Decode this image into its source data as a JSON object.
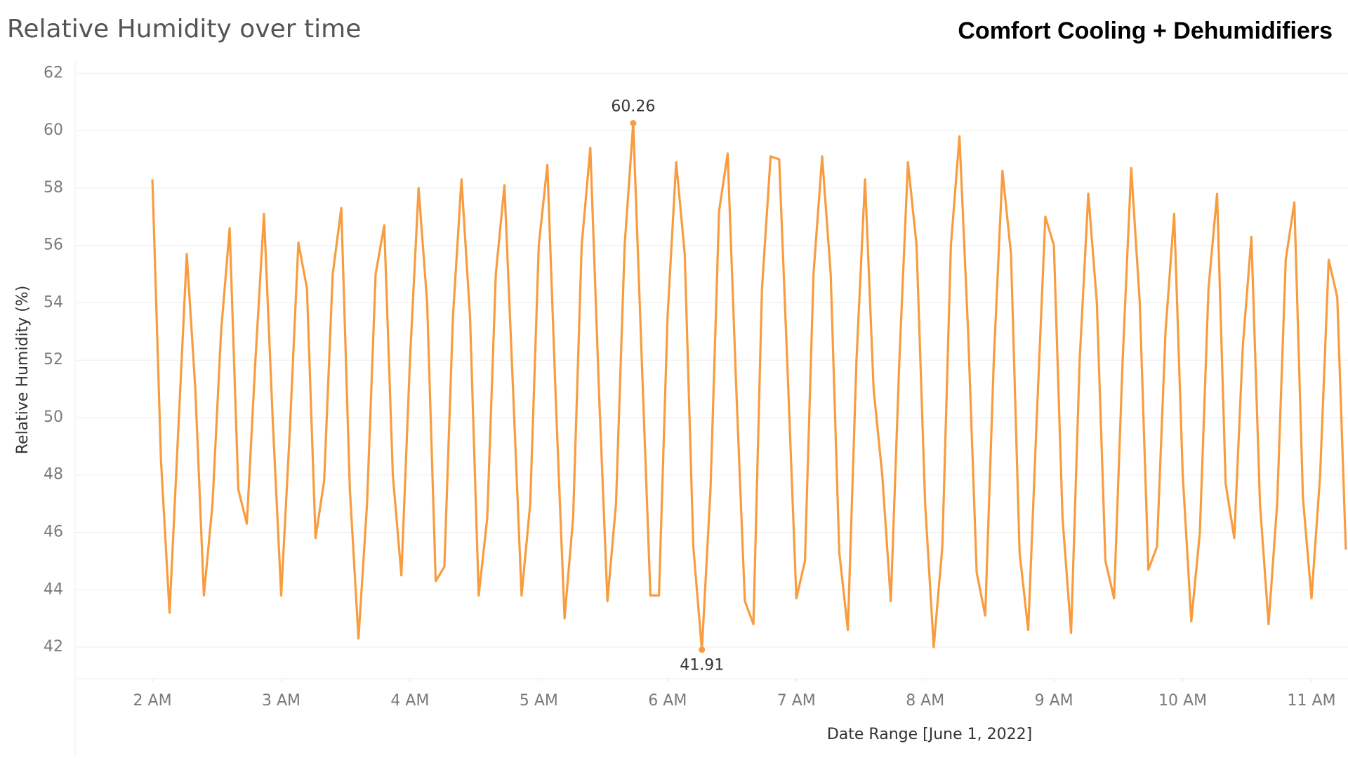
{
  "chart_data": {
    "type": "line",
    "title": "Relative Humidity over time",
    "subtitle": "Comfort Cooling + Dehumidifiers",
    "x_label": "Date Range [June 1, 2022]",
    "y_label": "Relative Humidity (%)",
    "x": [
      120,
      124,
      128,
      132,
      136,
      140,
      144,
      148,
      152,
      156,
      160,
      164,
      168,
      172,
      176,
      180,
      184,
      188,
      192,
      196,
      200,
      204,
      208,
      212,
      216,
      220,
      224,
      228,
      232,
      236,
      240,
      244,
      248,
      252,
      256,
      260,
      264,
      268,
      272,
      276,
      280,
      284,
      288,
      292,
      296,
      300,
      304,
      308,
      312,
      316,
      320,
      324,
      328,
      332,
      336,
      340,
      344,
      348,
      352,
      356,
      360,
      364,
      368,
      372,
      376,
      380,
      384,
      388,
      392,
      396,
      400,
      404,
      408,
      412,
      416,
      420,
      424,
      428,
      432,
      436,
      440,
      444,
      448,
      452,
      456,
      460,
      464,
      468,
      472,
      476,
      480,
      484,
      488,
      492,
      496,
      500,
      504,
      508,
      512,
      516,
      520,
      524,
      528,
      532,
      536,
      540,
      544,
      548,
      552,
      556,
      560,
      564,
      568,
      572,
      576,
      580,
      584,
      588,
      592,
      596,
      600,
      604,
      608,
      612,
      616,
      620,
      624,
      628,
      632,
      636,
      640,
      644,
      648,
      652,
      656,
      660,
      664,
      668,
      672,
      676
    ],
    "series": [
      {
        "name": "Relative Humidity",
        "color": "#f89c3f",
        "values": [
          58.3,
          48.5,
          43.2,
          49.5,
          55.7,
          51,
          43.8,
          47,
          53,
          56.6,
          47.5,
          46.3,
          52,
          57.1,
          50,
          43.8,
          49.5,
          56.1,
          54.5,
          45.8,
          47.8,
          55,
          57.3,
          47.5,
          42.3,
          47,
          55,
          56.7,
          48,
          44.5,
          52,
          58,
          54,
          44.3,
          44.8,
          53.5,
          58.3,
          53.5,
          43.8,
          46.5,
          55,
          58.1,
          51,
          43.8,
          47,
          56,
          58.8,
          50.5,
          43,
          46.5,
          56,
          59.4,
          51,
          43.6,
          47,
          56,
          60.26,
          52,
          43.8,
          43.8,
          53.5,
          58.9,
          55.7,
          45.5,
          41.91,
          47.5,
          57.2,
          59.2,
          51,
          43.6,
          42.8,
          54.5,
          59.1,
          59,
          51.5,
          43.7,
          45,
          55,
          59.1,
          55,
          45.3,
          42.6,
          52,
          58.3,
          51,
          48,
          43.6,
          52,
          58.9,
          56,
          47,
          42,
          45.5,
          56,
          59.8,
          53,
          44.6,
          43.1,
          52,
          58.6,
          55.7,
          45.3,
          42.6,
          50,
          57,
          56,
          46.5,
          42.5,
          52,
          57.8,
          54,
          45,
          43.7,
          52,
          58.7,
          54,
          44.7,
          45.5,
          53,
          57.1,
          48,
          42.9,
          46,
          54.5,
          57.8,
          47.7,
          45.8,
          52.5,
          56.3,
          47,
          42.8,
          47,
          55.5,
          57.5,
          47.2,
          43.7,
          48,
          55.5,
          54.2,
          45.4
        ]
      }
    ],
    "xlim": [
      84,
      677
    ],
    "xticks": [
      {
        "value": 120,
        "label": "2 AM"
      },
      {
        "value": 180,
        "label": "3 AM"
      },
      {
        "value": 240,
        "label": "4 AM"
      },
      {
        "value": 300,
        "label": "5 AM"
      },
      {
        "value": 360,
        "label": "6 AM"
      },
      {
        "value": 420,
        "label": "7 AM"
      },
      {
        "value": 480,
        "label": "8 AM"
      },
      {
        "value": 540,
        "label": "9 AM"
      },
      {
        "value": 600,
        "label": "10 AM"
      },
      {
        "value": 660,
        "label": "11 AM"
      }
    ],
    "ylim": [
      40.9,
      62.4
    ],
    "yticks": [
      42,
      44,
      46,
      48,
      50,
      52,
      54,
      56,
      58,
      60,
      62
    ],
    "grid": true
  }
}
